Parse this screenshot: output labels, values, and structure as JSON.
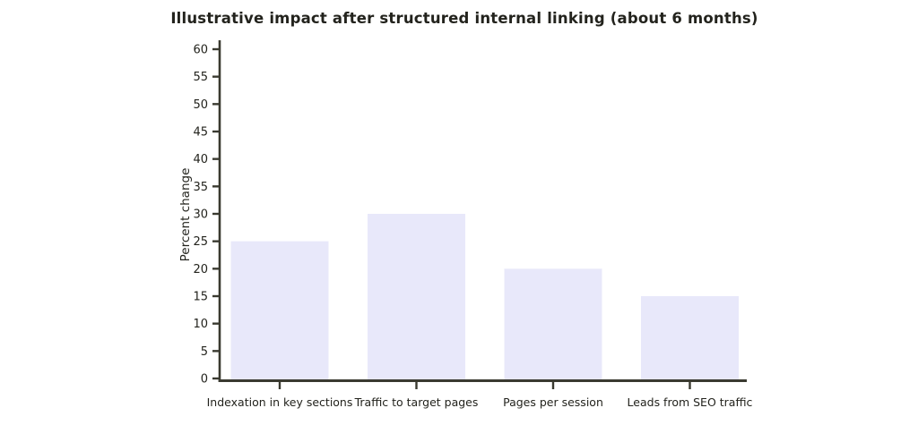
{
  "chart_data": {
    "type": "bar",
    "title": "Illustrative impact after structured internal linking (about 6 months)",
    "xlabel": "",
    "ylabel": "Percent change",
    "categories": [
      "Indexation in key sections",
      "Traffic to target pages",
      "Pages per session",
      "Leads from SEO traffic"
    ],
    "values": [
      25,
      30,
      20,
      15
    ],
    "ylim": [
      0,
      60
    ],
    "ytick_step": 5,
    "grid": false,
    "legend": "none",
    "colors": {
      "bar_fill": "#e8e8fa",
      "axis": "#3a3a30",
      "text": "#23231d",
      "background": "#ffffff"
    }
  }
}
